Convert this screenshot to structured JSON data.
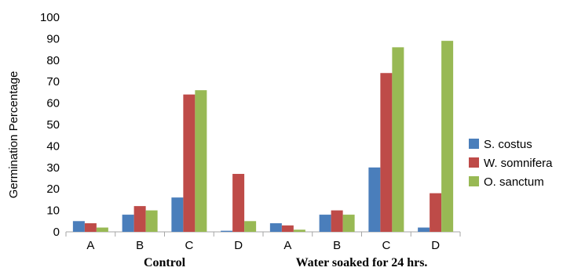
{
  "chart_data": {
    "type": "bar",
    "title": "",
    "ylabel": "Germination Percentage",
    "xlabel": "",
    "ylim": [
      0,
      100
    ],
    "yticks": [
      0,
      10,
      20,
      30,
      40,
      50,
      60,
      70,
      80,
      90,
      100
    ],
    "grid": false,
    "legend_position": "right",
    "categories": [
      "A",
      "B",
      "C",
      "D",
      "A",
      "B",
      "C",
      "D"
    ],
    "groups": [
      {
        "label": "Control",
        "categories": [
          0,
          1,
          2,
          3
        ]
      },
      {
        "label": "Water soaked for 24 hrs.",
        "categories": [
          4,
          5,
          6,
          7
        ]
      }
    ],
    "series": [
      {
        "name": "S. costus",
        "color": "#4a7ebb",
        "values": [
          5,
          8,
          16,
          0.5,
          4,
          8,
          30,
          2
        ]
      },
      {
        "name": "W. somnifera",
        "color": "#be4b48",
        "values": [
          4,
          12,
          64,
          27,
          3,
          10,
          74,
          18
        ]
      },
      {
        "name": "O. sanctum",
        "color": "#98b954",
        "values": [
          2,
          10,
          66,
          5,
          1,
          8,
          86,
          89
        ]
      }
    ]
  }
}
